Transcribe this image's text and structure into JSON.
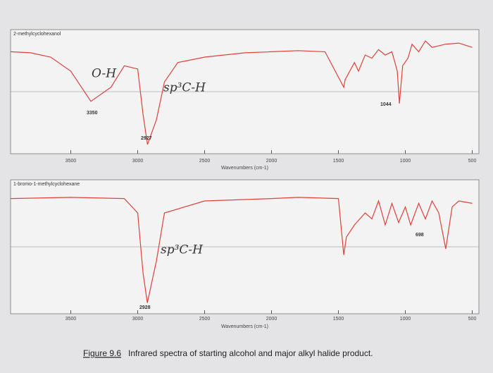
{
  "chart_data": [
    {
      "type": "line",
      "title": "2-methylcyclohexanol",
      "xlabel": "Wavenumbers (cm-1)",
      "color": "#e0403a",
      "x": [
        3950,
        3800,
        3650,
        3500,
        3350,
        3200,
        3100,
        3000,
        2960,
        2927,
        2860,
        2800,
        2700,
        2500,
        2200,
        2000,
        1800,
        1600,
        1460,
        1450,
        1380,
        1350,
        1300,
        1250,
        1200,
        1150,
        1100,
        1060,
        1044,
        1020,
        980,
        950,
        900,
        850,
        800,
        700,
        600,
        500
      ],
      "values": [
        88,
        87,
        83,
        70,
        42,
        55,
        75,
        72,
        30,
        2,
        25,
        60,
        78,
        83,
        87,
        88,
        89,
        88,
        55,
        62,
        78,
        70,
        85,
        82,
        90,
        85,
        88,
        70,
        40,
        75,
        82,
        95,
        88,
        98,
        92,
        95,
        96,
        92
      ],
      "xlim": [
        3950,
        450
      ],
      "ylim": [
        0,
        100
      ],
      "xticks": [
        3500,
        3000,
        2500,
        2000,
        1500,
        1000,
        500
      ],
      "annotations": [
        "3350",
        "2927",
        "1044",
        "O-H",
        "sp³C-H"
      ]
    },
    {
      "type": "line",
      "title": "1-bromo-1-methylcyclohexane",
      "xlabel": "Wavenumbers (cm-1)",
      "color": "#e0403a",
      "x": [
        3950,
        3500,
        3100,
        3000,
        2960,
        2928,
        2860,
        2800,
        2500,
        2000,
        1800,
        1500,
        1460,
        1440,
        1380,
        1300,
        1250,
        1200,
        1150,
        1100,
        1050,
        1000,
        960,
        900,
        850,
        800,
        750,
        698,
        650,
        600,
        500
      ],
      "values": [
        92,
        93,
        92,
        80,
        30,
        5,
        40,
        80,
        90,
        92,
        93,
        92,
        45,
        60,
        70,
        80,
        75,
        90,
        70,
        88,
        72,
        85,
        70,
        88,
        75,
        90,
        80,
        50,
        85,
        90,
        88
      ],
      "xlim": [
        3950,
        450
      ],
      "ylim": [
        0,
        100
      ],
      "xticks": [
        3500,
        3000,
        2500,
        2000,
        1500,
        1000,
        500
      ],
      "annotations": [
        "2928",
        "698",
        "sp³C-H"
      ]
    }
  ],
  "caption": {
    "label": "Figure 9.6",
    "text": "Infrared spectra of starting alcohol and major alkyl halide product."
  }
}
